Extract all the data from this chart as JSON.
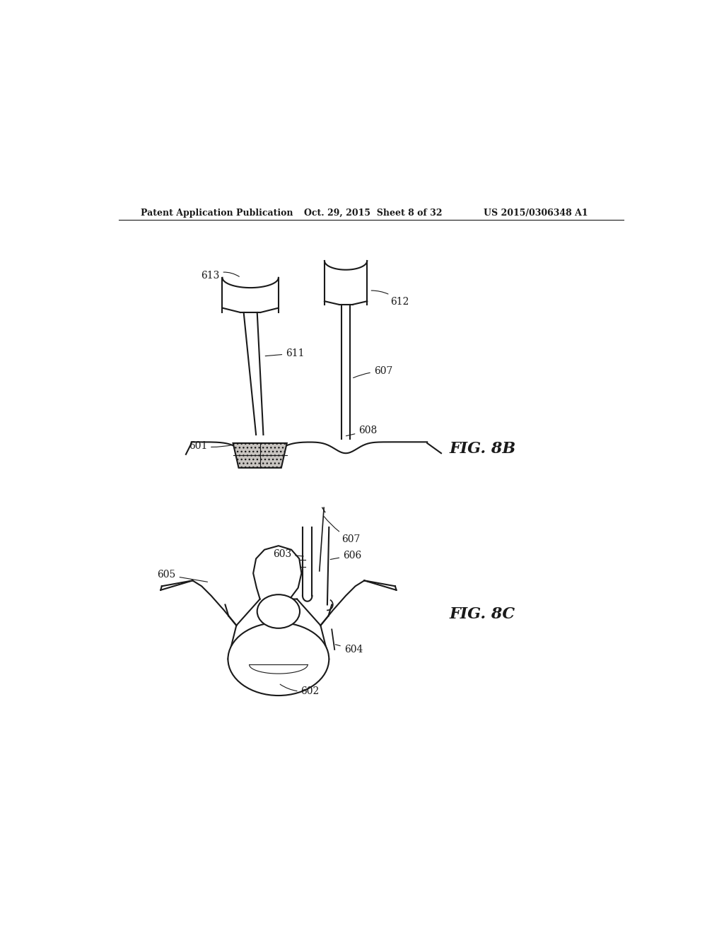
{
  "background_color": "#ffffff",
  "header_left": "Patent Application Publication",
  "header_mid": "Oct. 29, 2015  Sheet 8 of 32",
  "header_right": "US 2015/0306348 A1",
  "fig8b_label": "FIG. 8B",
  "fig8c_label": "FIG. 8C",
  "line_color": "#1a1a1a",
  "lw": 1.5
}
